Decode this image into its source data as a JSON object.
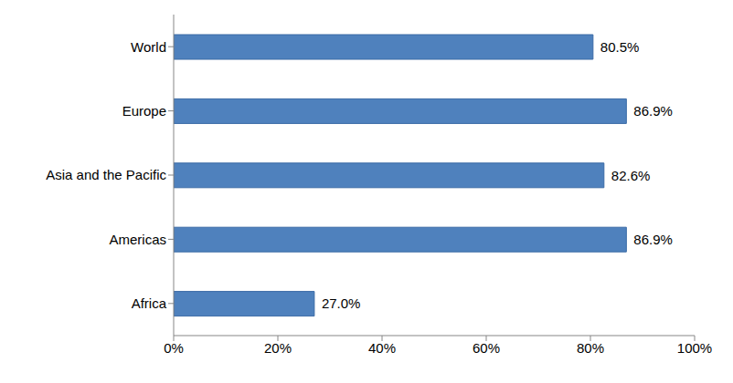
{
  "chart_data": {
    "type": "bar",
    "orientation": "horizontal",
    "categories": [
      "World",
      "Europe",
      "Asia and the Pacific",
      "Americas",
      "Africa"
    ],
    "values": [
      80.5,
      86.9,
      82.6,
      86.9,
      27.0
    ],
    "value_labels": [
      "80.5%",
      "86.9%",
      "82.6%",
      "86.9%",
      "27.0%"
    ],
    "data_labels": true,
    "color": "#4f81bd",
    "xlim": [
      0,
      100
    ],
    "xticks": [
      {
        "value": 0,
        "label": "0%"
      },
      {
        "value": 20,
        "label": "20%"
      },
      {
        "value": 40,
        "label": "40%"
      },
      {
        "value": 60,
        "label": "60%"
      },
      {
        "value": 80,
        "label": "80%"
      },
      {
        "value": 100,
        "label": "100%"
      }
    ],
    "grid": false
  }
}
